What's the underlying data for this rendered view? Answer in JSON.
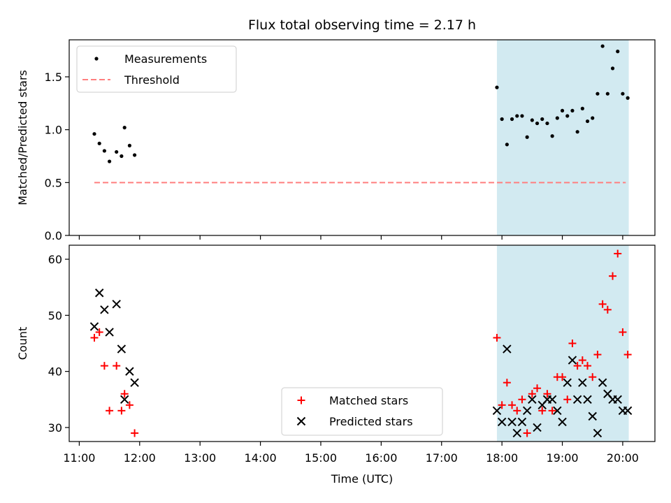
{
  "chart_data": [
    {
      "type": "scatter",
      "title": "Flux total observing time = 2.17 h",
      "ylabel": "Matched/Predicted stars",
      "xlim": [
        "10:50",
        "20:32"
      ],
      "ylim": [
        0,
        1.85
      ],
      "y_ticks": [
        "0.0",
        "0.5",
        "1.0",
        "1.5"
      ],
      "highlight_span": {
        "start": "17:55",
        "end": "20:06",
        "color": "#add8e6"
      },
      "legend_position": "upper-left",
      "series": [
        {
          "name": "Measurements",
          "marker": "dot",
          "color": "#000000",
          "x": [
            "11:15",
            "11:20",
            "11:25",
            "11:30",
            "11:37",
            "11:42",
            "11:45",
            "11:50",
            "11:55",
            "17:55",
            "18:00",
            "18:05",
            "18:10",
            "18:15",
            "18:20",
            "18:25",
            "18:30",
            "18:35",
            "18:40",
            "18:45",
            "18:50",
            "18:55",
            "19:00",
            "19:05",
            "19:10",
            "19:15",
            "19:20",
            "19:25",
            "19:30",
            "19:35",
            "19:40",
            "19:45",
            "19:50",
            "19:55",
            "20:00",
            "20:05"
          ],
          "y": [
            0.96,
            0.87,
            0.8,
            0.7,
            0.79,
            0.75,
            1.02,
            0.85,
            0.76,
            1.4,
            1.1,
            0.86,
            1.1,
            1.13,
            1.13,
            0.93,
            1.09,
            1.06,
            1.1,
            1.06,
            0.94,
            1.11,
            1.18,
            1.13,
            1.18,
            0.98,
            1.2,
            1.08,
            1.11,
            1.34,
            1.79,
            1.34,
            1.58,
            1.74,
            1.34,
            1.3
          ]
        },
        {
          "name": "Threshold",
          "type": "line",
          "style": "dashed",
          "color": "#ff7f7f",
          "x": [
            "11:15",
            "20:03"
          ],
          "y": [
            0.5,
            0.5
          ]
        }
      ]
    },
    {
      "type": "scatter",
      "xlabel": "Time (UTC)",
      "ylabel": "Count",
      "xlim": [
        "10:50",
        "20:32"
      ],
      "ylim": [
        27.5,
        62.5
      ],
      "y_ticks": [
        "30",
        "40",
        "50",
        "60"
      ],
      "x_ticks": [
        "11:00",
        "12:00",
        "13:00",
        "14:00",
        "15:00",
        "16:00",
        "17:00",
        "18:00",
        "19:00",
        "20:00"
      ],
      "highlight_span": {
        "start": "17:55",
        "end": "20:06",
        "color": "#add8e6"
      },
      "legend_position": "lower-center",
      "series": [
        {
          "name": "Matched stars",
          "marker": "plus",
          "color": "#ff0000",
          "x": [
            "11:15",
            "11:20",
            "11:25",
            "11:30",
            "11:37",
            "11:42",
            "11:45",
            "11:50",
            "11:55",
            "17:55",
            "18:00",
            "18:05",
            "18:10",
            "18:15",
            "18:20",
            "18:25",
            "18:30",
            "18:35",
            "18:40",
            "18:45",
            "18:50",
            "18:55",
            "19:00",
            "19:05",
            "19:10",
            "19:15",
            "19:20",
            "19:25",
            "19:30",
            "19:35",
            "19:40",
            "19:45",
            "19:50",
            "19:55",
            "20:00",
            "20:05"
          ],
          "y": [
            46,
            47,
            41,
            33,
            41,
            33,
            36,
            34,
            29,
            46,
            34,
            38,
            34,
            33,
            35,
            29,
            36,
            37,
            33,
            36,
            33,
            39,
            39,
            35,
            45,
            41,
            42,
            41,
            39,
            43,
            52,
            51,
            57,
            61,
            47,
            43
          ]
        },
        {
          "name": "Predicted stars",
          "marker": "x",
          "color": "#000000",
          "x": [
            "11:15",
            "11:20",
            "11:25",
            "11:30",
            "11:37",
            "11:42",
            "11:45",
            "11:50",
            "11:55",
            "17:55",
            "18:00",
            "18:05",
            "18:10",
            "18:15",
            "18:20",
            "18:25",
            "18:30",
            "18:35",
            "18:40",
            "18:45",
            "18:50",
            "18:55",
            "19:00",
            "19:05",
            "19:10",
            "19:15",
            "19:20",
            "19:25",
            "19:30",
            "19:35",
            "19:40",
            "19:45",
            "19:50",
            "19:55",
            "20:00",
            "20:05"
          ],
          "y": [
            48,
            54,
            51,
            47,
            52,
            44,
            35,
            40,
            38,
            33,
            31,
            44,
            31,
            29,
            31,
            33,
            35,
            30,
            34,
            35,
            35,
            33,
            31,
            38,
            42,
            35,
            38,
            35,
            32,
            29,
            38,
            36,
            35,
            35,
            33,
            33
          ]
        }
      ]
    }
  ]
}
